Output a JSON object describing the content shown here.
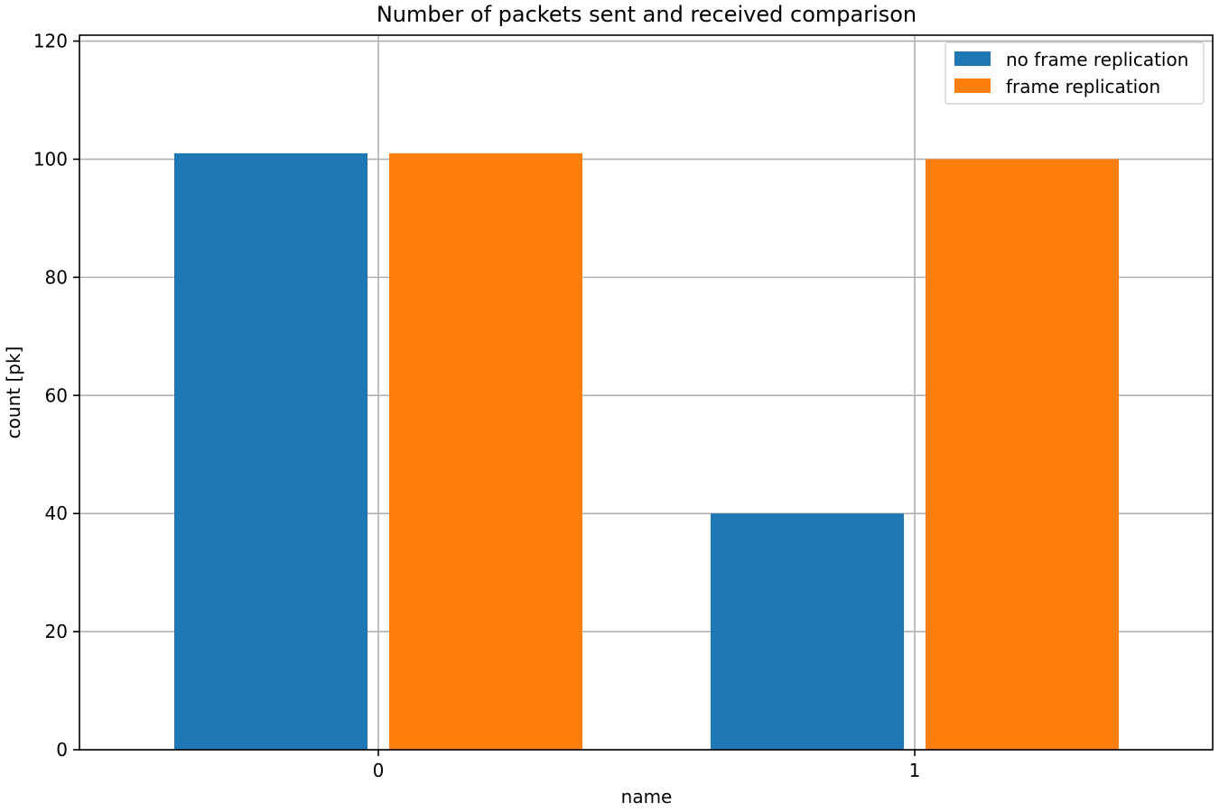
{
  "chart_data": {
    "type": "bar",
    "title": "Number of packets sent and received comparison",
    "xlabel": "name",
    "ylabel": "count [pk]",
    "categories": [
      "0",
      "1"
    ],
    "series": [
      {
        "name": "no frame replication",
        "color": "#1f77b4",
        "values": [
          101,
          40
        ]
      },
      {
        "name": "frame replication",
        "color": "#ff7f0e",
        "values": [
          101,
          100
        ]
      }
    ],
    "ylim": [
      0,
      121
    ],
    "yticks": [
      0,
      20,
      40,
      60,
      80,
      100,
      120
    ],
    "ytick_labels": [
      "0",
      "20",
      "40",
      "60",
      "80",
      "100",
      "120"
    ],
    "grid": true,
    "legend_position": "top-right"
  }
}
